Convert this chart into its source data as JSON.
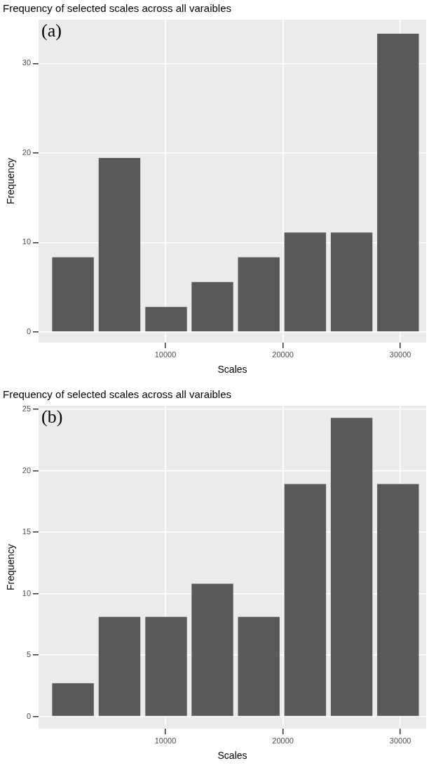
{
  "chart_data": [
    {
      "type": "bar",
      "title": "Frequency of selected scales across all varaibles",
      "xlabel": "Scales",
      "ylabel": "Frequency",
      "annotations": [
        "(a)"
      ],
      "x": [
        2130,
        6090,
        10060,
        14000,
        17950,
        21900,
        25850,
        29800
      ],
      "values": [
        8.33,
        19.44,
        2.78,
        5.56,
        8.33,
        11.11,
        11.11,
        33.33
      ],
      "color": "#595959",
      "xlim": [
        -800,
        32200
      ],
      "xticks": [
        10000,
        20000,
        30000
      ],
      "ylim": [
        -1.2,
        34.9
      ],
      "yticks": [
        0,
        10,
        20,
        30
      ],
      "grid": true
    },
    {
      "type": "bar",
      "title": "Frequency of selected scales across all varaibles",
      "xlabel": "Scales",
      "ylabel": "Frequency",
      "annotations": [
        "(b)"
      ],
      "x": [
        2130,
        6090,
        10060,
        14000,
        17950,
        21900,
        25850,
        29800
      ],
      "values": [
        2.7,
        8.11,
        8.11,
        10.81,
        8.11,
        18.92,
        24.32,
        18.92
      ],
      "color": "#595959",
      "xlim": [
        -800,
        32200
      ],
      "xticks": [
        10000,
        20000,
        30000
      ],
      "ylim": [
        -1,
        25.3
      ],
      "yticks": [
        0,
        5,
        10,
        15,
        20,
        25
      ],
      "grid": true
    }
  ]
}
